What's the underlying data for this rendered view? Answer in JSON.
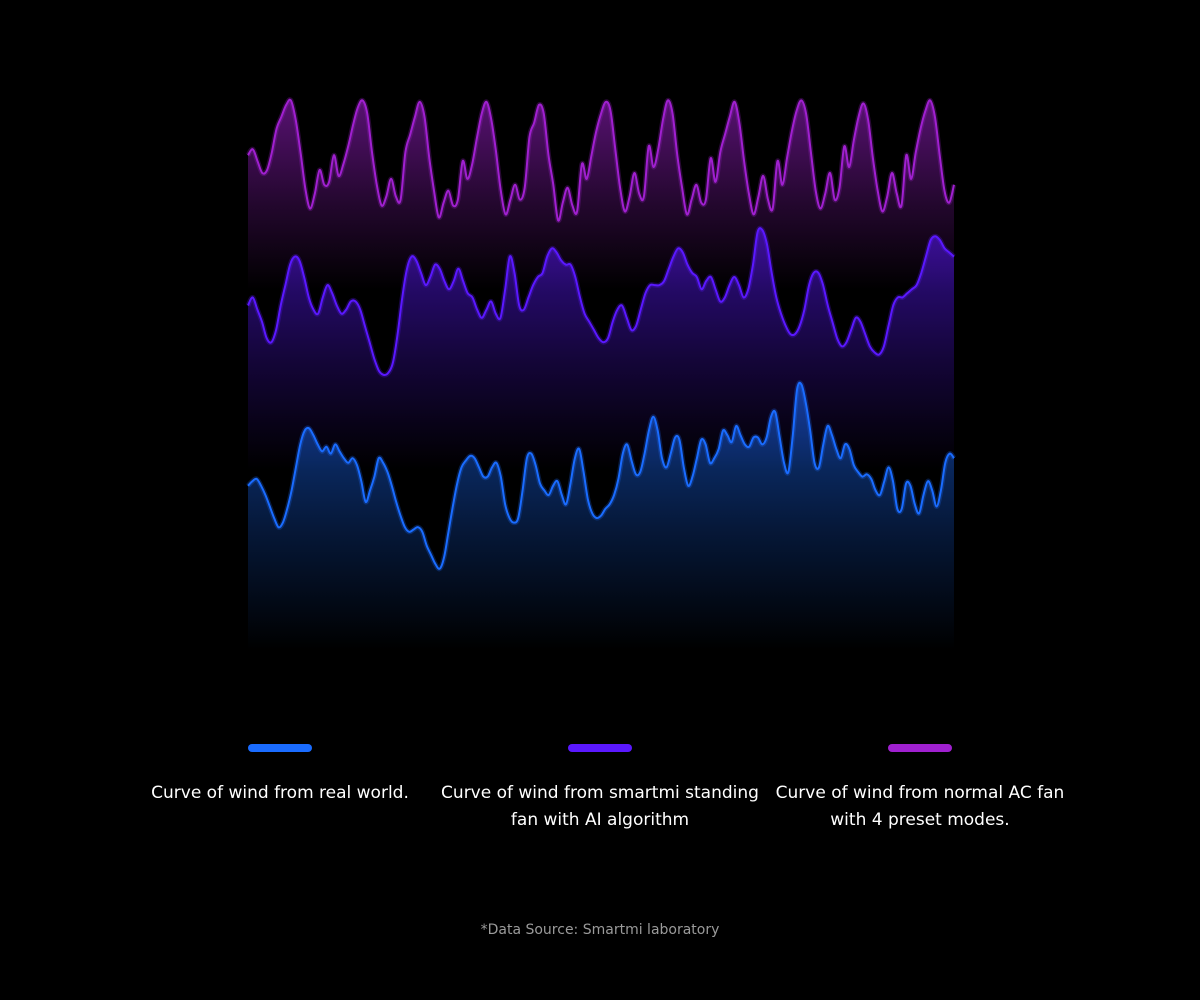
{
  "chart_data": {
    "type": "area",
    "title": "",
    "xlabel": "",
    "ylabel": "",
    "grid": false,
    "legend_position": "bottom",
    "series": [
      {
        "name": "Curve of wind from real world.",
        "color": "#1a6cff",
        "values": [
          0.54,
          0.56,
          0.57,
          0.54,
          0.5,
          0.45,
          0.4,
          0.36,
          0.38,
          0.44,
          0.52,
          0.62,
          0.72,
          0.78,
          0.79,
          0.76,
          0.72,
          0.69,
          0.71,
          0.68,
          0.72,
          0.69,
          0.66,
          0.64,
          0.66,
          0.63,
          0.56,
          0.47,
          0.52,
          0.58,
          0.66,
          0.64,
          0.6,
          0.54,
          0.47,
          0.41,
          0.36,
          0.34,
          0.35,
          0.36,
          0.34,
          0.28,
          0.24,
          0.2,
          0.18,
          0.23,
          0.34,
          0.45,
          0.55,
          0.62,
          0.65,
          0.67,
          0.66,
          0.62,
          0.58,
          0.58,
          0.62,
          0.64,
          0.58,
          0.46,
          0.4,
          0.38,
          0.4,
          0.52,
          0.66,
          0.68,
          0.63,
          0.55,
          0.52,
          0.5,
          0.54,
          0.56,
          0.5,
          0.46,
          0.55,
          0.66,
          0.7,
          0.6,
          0.48,
          0.42,
          0.4,
          0.41,
          0.44,
          0.46,
          0.5,
          0.57,
          0.68,
          0.72,
          0.65,
          0.59,
          0.6,
          0.68,
          0.78,
          0.84,
          0.78,
          0.66,
          0.62,
          0.68,
          0.75,
          0.74,
          0.62,
          0.54,
          0.58,
          0.66,
          0.74,
          0.72,
          0.64,
          0.66,
          0.7,
          0.78,
          0.76,
          0.73,
          0.8,
          0.76,
          0.72,
          0.71,
          0.75,
          0.75,
          0.72,
          0.75,
          0.84,
          0.86,
          0.75,
          0.64,
          0.6,
          0.76,
          0.96,
          0.98,
          0.9,
          0.78,
          0.64,
          0.62,
          0.72,
          0.8,
          0.76,
          0.7,
          0.66,
          0.72,
          0.7,
          0.63,
          0.6,
          0.58,
          0.59,
          0.57,
          0.52,
          0.5,
          0.56,
          0.62,
          0.56,
          0.44,
          0.44,
          0.55,
          0.54,
          0.46,
          0.42,
          0.5,
          0.56,
          0.52,
          0.45,
          0.52,
          0.64,
          0.68,
          0.66
        ],
        "base": 0.0
      },
      {
        "name": "Curve of wind from smartmi standing fan with AI algorithm",
        "color": "#5a18ff",
        "values": [
          0.62,
          0.66,
          0.6,
          0.54,
          0.46,
          0.44,
          0.5,
          0.62,
          0.72,
          0.82,
          0.86,
          0.84,
          0.76,
          0.66,
          0.6,
          0.58,
          0.66,
          0.72,
          0.68,
          0.62,
          0.58,
          0.6,
          0.64,
          0.64,
          0.6,
          0.52,
          0.44,
          0.36,
          0.3,
          0.28,
          0.29,
          0.34,
          0.48,
          0.66,
          0.8,
          0.86,
          0.84,
          0.78,
          0.72,
          0.76,
          0.82,
          0.8,
          0.74,
          0.7,
          0.74,
          0.8,
          0.74,
          0.68,
          0.66,
          0.6,
          0.56,
          0.6,
          0.64,
          0.58,
          0.56,
          0.7,
          0.86,
          0.78,
          0.62,
          0.6,
          0.66,
          0.72,
          0.76,
          0.78,
          0.86,
          0.9,
          0.88,
          0.84,
          0.82,
          0.82,
          0.76,
          0.66,
          0.58,
          0.54,
          0.5,
          0.46,
          0.44,
          0.46,
          0.54,
          0.6,
          0.62,
          0.56,
          0.5,
          0.52,
          0.6,
          0.68,
          0.72,
          0.72,
          0.72,
          0.74,
          0.8,
          0.86,
          0.9,
          0.88,
          0.82,
          0.78,
          0.76,
          0.7,
          0.74,
          0.76,
          0.7,
          0.64,
          0.66,
          0.72,
          0.76,
          0.72,
          0.66,
          0.7,
          0.82,
          0.98,
          0.99,
          0.92,
          0.78,
          0.66,
          0.58,
          0.52,
          0.48,
          0.48,
          0.52,
          0.6,
          0.72,
          0.78,
          0.78,
          0.72,
          0.62,
          0.54,
          0.46,
          0.42,
          0.44,
          0.5,
          0.56,
          0.54,
          0.48,
          0.42,
          0.39,
          0.38,
          0.42,
          0.52,
          0.62,
          0.66,
          0.66,
          0.68,
          0.7,
          0.72,
          0.78,
          0.86,
          0.94,
          0.96,
          0.94,
          0.9,
          0.88,
          0.86
        ],
        "base": 0.0
      },
      {
        "name": "Curve of wind from normal AC fan with 4 preset modes.",
        "color": "#a020d0",
        "values": [
          0.6,
          0.64,
          0.56,
          0.48,
          0.5,
          0.62,
          0.78,
          0.86,
          0.94,
          0.97,
          0.84,
          0.62,
          0.38,
          0.24,
          0.34,
          0.5,
          0.4,
          0.42,
          0.6,
          0.46,
          0.54,
          0.66,
          0.8,
          0.92,
          0.97,
          0.88,
          0.62,
          0.4,
          0.26,
          0.32,
          0.44,
          0.32,
          0.3,
          0.62,
          0.74,
          0.86,
          0.96,
          0.86,
          0.58,
          0.36,
          0.18,
          0.28,
          0.36,
          0.26,
          0.3,
          0.56,
          0.44,
          0.54,
          0.72,
          0.88,
          0.96,
          0.84,
          0.62,
          0.36,
          0.2,
          0.3,
          0.4,
          0.3,
          0.38,
          0.72,
          0.82,
          0.94,
          0.88,
          0.6,
          0.4,
          0.16,
          0.28,
          0.38,
          0.26,
          0.22,
          0.54,
          0.44,
          0.6,
          0.76,
          0.88,
          0.96,
          0.9,
          0.64,
          0.38,
          0.22,
          0.32,
          0.48,
          0.34,
          0.32,
          0.66,
          0.52,
          0.64,
          0.84,
          0.97,
          0.88,
          0.6,
          0.38,
          0.2,
          0.3,
          0.4,
          0.28,
          0.3,
          0.58,
          0.42,
          0.62,
          0.74,
          0.86,
          0.96,
          0.82,
          0.56,
          0.34,
          0.2,
          0.32,
          0.46,
          0.3,
          0.24,
          0.56,
          0.4,
          0.58,
          0.76,
          0.9,
          0.97,
          0.88,
          0.62,
          0.36,
          0.24,
          0.34,
          0.48,
          0.3,
          0.38,
          0.66,
          0.52,
          0.7,
          0.86,
          0.95,
          0.84,
          0.58,
          0.36,
          0.22,
          0.32,
          0.48,
          0.34,
          0.26,
          0.6,
          0.44,
          0.62,
          0.78,
          0.9,
          0.97,
          0.86,
          0.6,
          0.36,
          0.28,
          0.4
        ],
        "base": 0.0
      }
    ]
  },
  "legend": [
    {
      "color": "#1a6cff",
      "label": "Curve of wind from real world."
    },
    {
      "color": "#5a18ff",
      "label": "Curve of wind from smartmi standing fan with AI algorithm"
    },
    {
      "color": "#a020d0",
      "label": "Curve of wind from normal AC fan with 4 preset modes."
    }
  ],
  "source_note": "*Data Source: Smartmi laboratory"
}
